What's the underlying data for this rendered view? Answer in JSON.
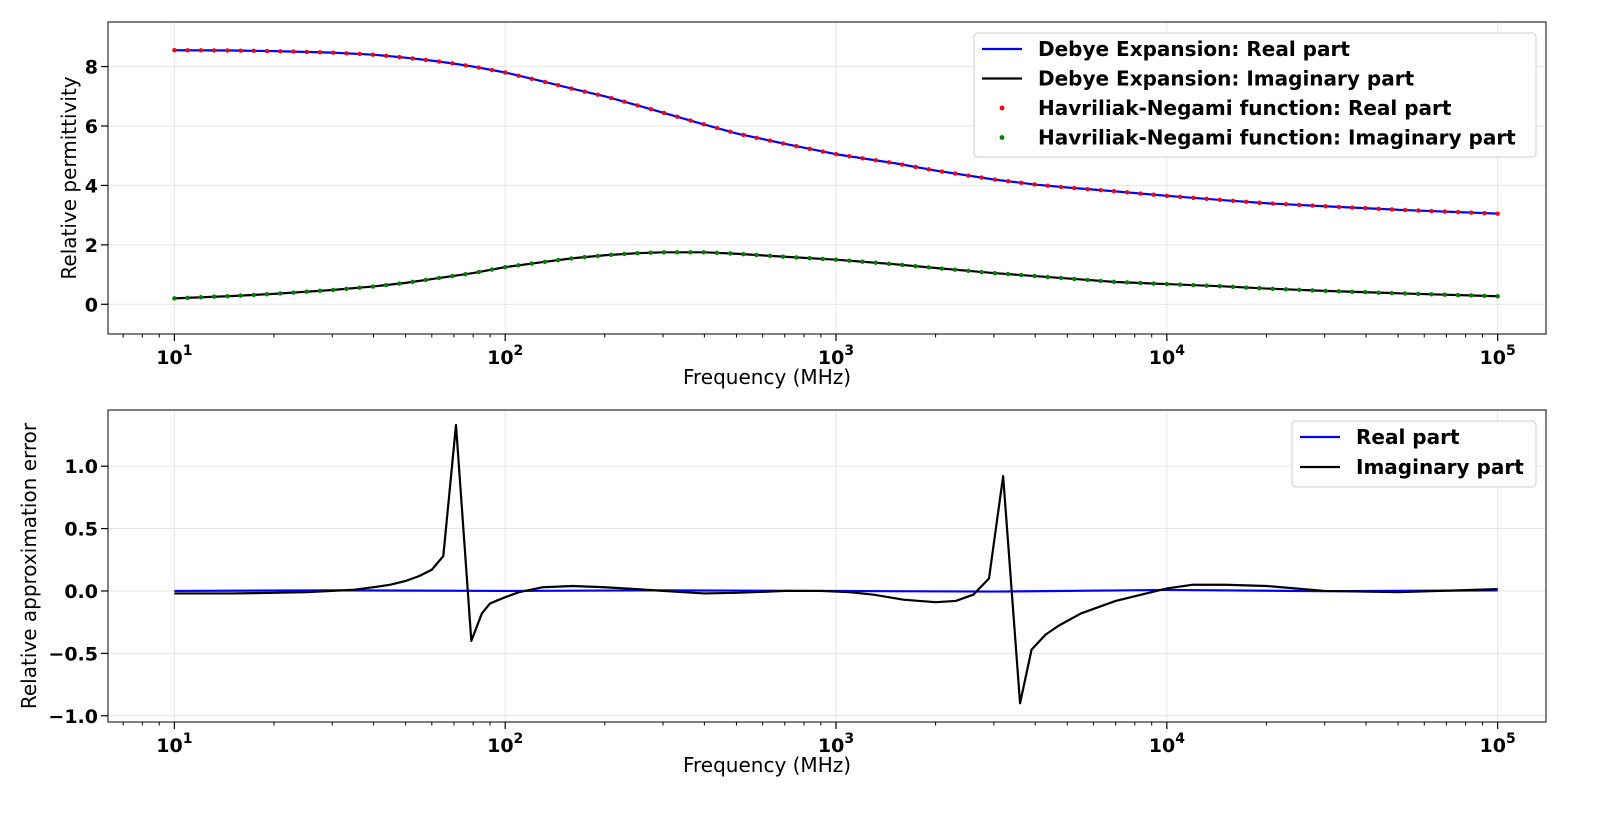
{
  "chart_data": [
    {
      "type": "line",
      "xlabel": "Frequency (MHz)",
      "ylabel": "Relative permittivity",
      "xscale": "log",
      "xlim": [
        6.3,
        140000
      ],
      "ylim": [
        -1,
        9.5
      ],
      "x_ticks": [
        10,
        100,
        1000,
        10000,
        100000
      ],
      "x_tick_labels": [
        {
          "base": "10",
          "exp": "1"
        },
        {
          "base": "10",
          "exp": "2"
        },
        {
          "base": "10",
          "exp": "3"
        },
        {
          "base": "10",
          "exp": "4"
        },
        {
          "base": "10",
          "exp": "5"
        }
      ],
      "y_ticks": [
        0,
        2,
        4,
        6,
        8
      ],
      "y_tick_labels": [
        "0",
        "2",
        "4",
        "6",
        "8"
      ],
      "grid": true,
      "legend_position": "top-right",
      "series": [
        {
          "name": "Debye Expansion: Real part",
          "kind": "line",
          "color": "#0000ff",
          "x": [
            10,
            15,
            20,
            30,
            40,
            50,
            60,
            70,
            80,
            100,
            130,
            160,
            200,
            250,
            300,
            400,
            500,
            700,
            1000,
            1500,
            2000,
            3000,
            4000,
            5000,
            7000,
            10000,
            15000,
            20000,
            30000,
            50000,
            100000
          ],
          "y": [
            8.55,
            8.54,
            8.52,
            8.47,
            8.4,
            8.3,
            8.2,
            8.1,
            8.0,
            7.8,
            7.5,
            7.25,
            7.0,
            6.7,
            6.45,
            6.05,
            5.75,
            5.4,
            5.05,
            4.75,
            4.5,
            4.2,
            4.03,
            3.93,
            3.8,
            3.65,
            3.5,
            3.4,
            3.3,
            3.18,
            3.05
          ]
        },
        {
          "name": "Debye Expansion: Imaginary part",
          "kind": "line",
          "color": "#000000",
          "x": [
            10,
            15,
            20,
            30,
            40,
            50,
            60,
            80,
            100,
            130,
            160,
            200,
            250,
            300,
            400,
            500,
            700,
            1000,
            1500,
            2000,
            3000,
            5000,
            7000,
            10000,
            15000,
            20000,
            30000,
            50000,
            100000
          ],
          "y": [
            0.2,
            0.28,
            0.35,
            0.48,
            0.6,
            0.72,
            0.85,
            1.05,
            1.25,
            1.42,
            1.55,
            1.65,
            1.72,
            1.75,
            1.75,
            1.7,
            1.6,
            1.5,
            1.35,
            1.22,
            1.05,
            0.87,
            0.75,
            0.68,
            0.6,
            0.53,
            0.45,
            0.37,
            0.27
          ]
        },
        {
          "name": "Havriliak-Negami function: Real part",
          "kind": "scatter",
          "color": "#ff0000",
          "x": [
            10,
            15,
            20,
            30,
            40,
            50,
            60,
            70,
            80,
            100,
            130,
            160,
            200,
            250,
            300,
            400,
            500,
            700,
            1000,
            1500,
            2000,
            3000,
            4000,
            5000,
            7000,
            10000,
            15000,
            20000,
            30000,
            50000,
            100000
          ],
          "y": [
            8.55,
            8.54,
            8.52,
            8.47,
            8.4,
            8.3,
            8.2,
            8.1,
            8.0,
            7.8,
            7.5,
            7.25,
            7.0,
            6.7,
            6.45,
            6.05,
            5.75,
            5.4,
            5.05,
            4.75,
            4.5,
            4.2,
            4.03,
            3.93,
            3.8,
            3.65,
            3.5,
            3.4,
            3.3,
            3.18,
            3.05
          ]
        },
        {
          "name": "Havriliak-Negami function: Imaginary part",
          "kind": "scatter",
          "color": "#008000",
          "x": [
            10,
            15,
            20,
            30,
            40,
            50,
            60,
            80,
            100,
            130,
            160,
            200,
            250,
            300,
            400,
            500,
            700,
            1000,
            1500,
            2000,
            3000,
            5000,
            7000,
            10000,
            15000,
            20000,
            30000,
            50000,
            100000
          ],
          "y": [
            0.2,
            0.28,
            0.35,
            0.48,
            0.6,
            0.72,
            0.85,
            1.05,
            1.25,
            1.42,
            1.55,
            1.65,
            1.72,
            1.75,
            1.75,
            1.7,
            1.6,
            1.5,
            1.35,
            1.22,
            1.05,
            0.87,
            0.75,
            0.68,
            0.6,
            0.53,
            0.45,
            0.37,
            0.27
          ]
        }
      ]
    },
    {
      "type": "line",
      "xlabel": "Frequency (MHz)",
      "ylabel": "Relative approximation error",
      "xscale": "log",
      "xlim": [
        6.3,
        140000
      ],
      "ylim": [
        -1.05,
        1.45
      ],
      "x_ticks": [
        10,
        100,
        1000,
        10000,
        100000
      ],
      "x_tick_labels": [
        {
          "base": "10",
          "exp": "1"
        },
        {
          "base": "10",
          "exp": "2"
        },
        {
          "base": "10",
          "exp": "3"
        },
        {
          "base": "10",
          "exp": "4"
        },
        {
          "base": "10",
          "exp": "5"
        }
      ],
      "y_ticks": [
        -1.0,
        -0.5,
        0.0,
        0.5,
        1.0
      ],
      "y_tick_labels": [
        "−1.0",
        "−0.5",
        "0.0",
        "0.5",
        "1.0"
      ],
      "grid": true,
      "legend_position": "top-right",
      "series": [
        {
          "name": "Real part",
          "kind": "line",
          "color": "#0000ff",
          "x": [
            10,
            30,
            100,
            300,
            1000,
            3000,
            10000,
            30000,
            100000
          ],
          "y": [
            0.0,
            0.005,
            0.0,
            0.005,
            0.0,
            -0.005,
            0.008,
            -0.002,
            0.005
          ]
        },
        {
          "name": "Imaginary part",
          "kind": "line",
          "color": "#000000",
          "x": [
            10,
            15,
            20,
            25,
            30,
            35,
            40,
            45,
            50,
            55,
            60,
            65,
            71,
            79,
            85,
            90,
            100,
            110,
            130,
            160,
            200,
            250,
            300,
            400,
            500,
            700,
            900,
            1100,
            1300,
            1600,
            2000,
            2300,
            2600,
            2900,
            3200,
            3600,
            3900,
            4300,
            4700,
            5500,
            7000,
            10000,
            12000,
            15000,
            20000,
            30000,
            50000,
            100000
          ],
          "y": [
            -0.02,
            -0.02,
            -0.015,
            -0.01,
            0.0,
            0.01,
            0.03,
            0.05,
            0.08,
            0.12,
            0.17,
            0.28,
            1.33,
            -0.4,
            -0.18,
            -0.1,
            -0.05,
            -0.01,
            0.03,
            0.04,
            0.03,
            0.015,
            0.0,
            -0.02,
            -0.015,
            0.0,
            0.0,
            -0.01,
            -0.03,
            -0.07,
            -0.09,
            -0.08,
            -0.03,
            0.1,
            0.92,
            -0.9,
            -0.47,
            -0.35,
            -0.28,
            -0.18,
            -0.08,
            0.02,
            0.05,
            0.05,
            0.04,
            0.0,
            -0.01,
            0.015
          ]
        }
      ]
    }
  ]
}
